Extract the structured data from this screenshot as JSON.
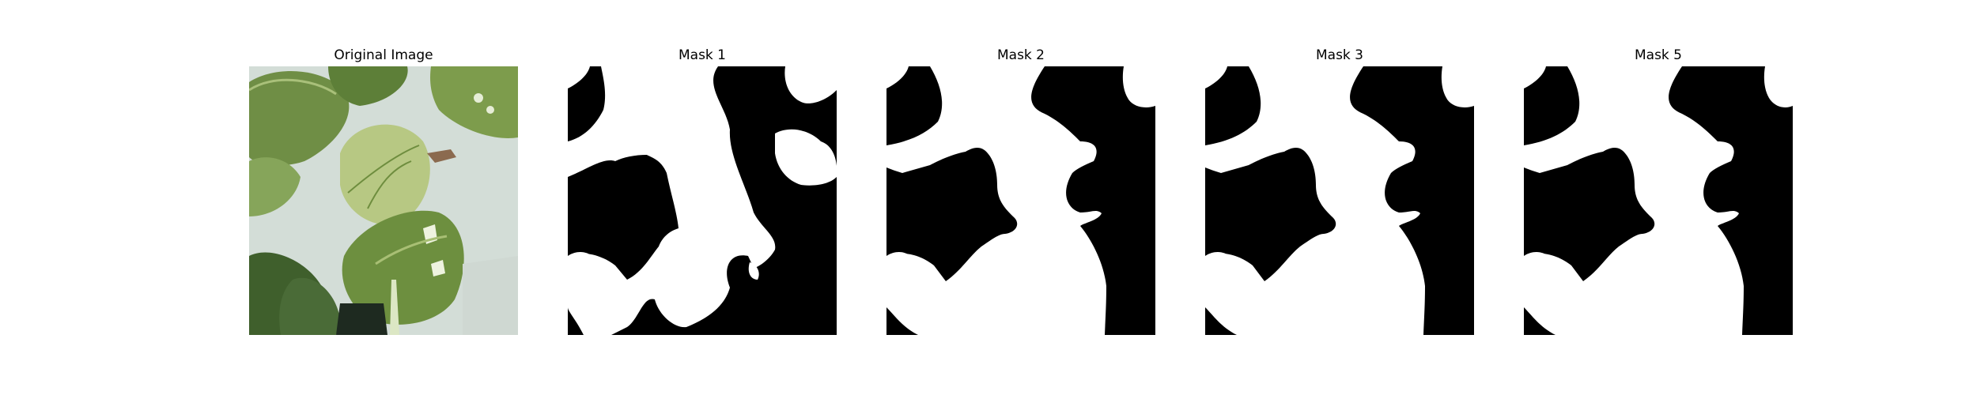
{
  "panels": [
    {
      "title": "Original Image",
      "kind": "photo"
    },
    {
      "title": "Mask 1",
      "kind": "mask"
    },
    {
      "title": "Mask 2",
      "kind": "mask"
    },
    {
      "title": "Mask 3",
      "kind": "mask"
    },
    {
      "title": "Mask 5",
      "kind": "mask"
    }
  ],
  "colors": {
    "mask_foreground": "#ffffff",
    "mask_background": "#000000",
    "photo_background": "#d9e2dc",
    "leaf_dark": "#4c6b34",
    "leaf_mid": "#7c9a4e",
    "leaf_light": "#b9c98a"
  }
}
